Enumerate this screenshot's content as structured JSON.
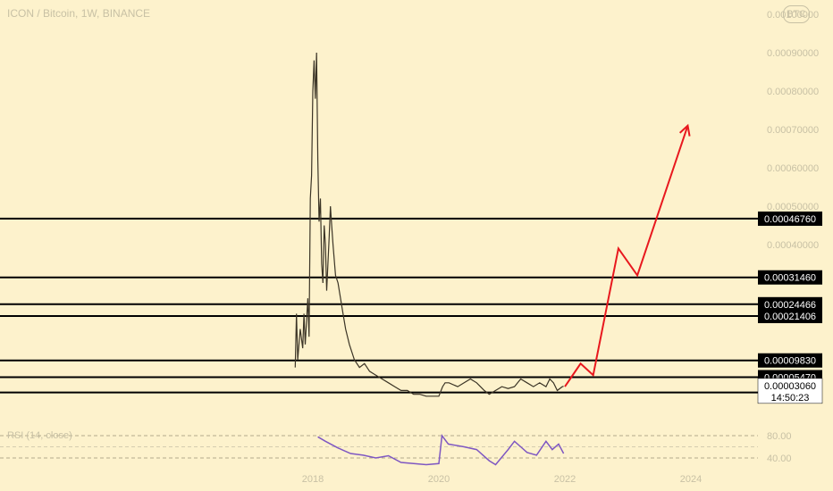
{
  "header": {
    "title": "ICON / Bitcoin, 1W, BINANCE",
    "currency_badge": "BTC"
  },
  "chart_data": {
    "type": "line",
    "title": "ICON / Bitcoin, 1W, BINANCE",
    "price_axis_labels": [
      "0.00100000",
      "0.00090000",
      "0.00080000",
      "0.00070000",
      "0.00060000",
      "0.00050000",
      "0.00040000"
    ],
    "time_axis_labels": [
      "2018",
      "2020",
      "2022",
      "2024"
    ],
    "ylim": [
      1e-05,
      0.00102
    ],
    "horizontal_levels": [
      0.0004676,
      0.0003146,
      0.00024466,
      0.00021406,
      9.83e-05,
      5.47e-05,
      1.484e-05
    ],
    "horizontal_level_labels": [
      "0.00046760",
      "0.00031460",
      "0.00024466",
      "0.00021406",
      "0.00009830",
      "0.00005470",
      "0.00001484"
    ],
    "last_price": "0.00003060",
    "countdown": "14:50:23",
    "price_series": {
      "name": "",
      "x": [
        2017.72,
        2017.74,
        2017.76,
        2017.8,
        2017.84,
        2017.86,
        2017.88,
        2017.92,
        2017.94,
        2017.96,
        2017.98,
        2018.0,
        2018.02,
        2018.04,
        2018.06,
        2018.08,
        2018.1,
        2018.12,
        2018.14,
        2018.16,
        2018.18,
        2018.2,
        2018.22,
        2018.26,
        2018.28,
        2018.3,
        2018.32,
        2018.36,
        2018.4,
        2018.44,
        2018.48,
        2018.52,
        2018.58,
        2018.66,
        2018.74,
        2018.82,
        2018.9,
        2019.0,
        2019.1,
        2019.2,
        2019.3,
        2019.4,
        2019.5,
        2019.6,
        2019.7,
        2019.8,
        2019.9,
        2020.0,
        2020.06,
        2020.1,
        2020.16,
        2020.3,
        2020.5,
        2020.6,
        2020.66,
        2020.72,
        2020.8,
        2020.9,
        2021.0,
        2021.1,
        2021.2,
        2021.3,
        2021.4,
        2021.5,
        2021.6,
        2021.7,
        2021.76,
        2021.82,
        2021.88,
        2021.96,
        2021.98
      ],
      "y": [
        8e-05,
        0.00022,
        0.0001,
        0.00018,
        0.00013,
        0.00022,
        0.00014,
        0.00026,
        0.00016,
        0.00052,
        0.00058,
        0.0008,
        0.00088,
        0.00078,
        0.0009,
        0.00062,
        0.00046,
        0.00052,
        0.00035,
        0.0003,
        0.00045,
        0.0004,
        0.00028,
        0.00042,
        0.0005,
        0.00045,
        0.0004,
        0.00032,
        0.0003,
        0.00026,
        0.00022,
        0.00018,
        0.00014,
        0.0001,
        8e-05,
        9e-05,
        7e-05,
        6e-05,
        5e-05,
        4e-05,
        3e-05,
        2e-05,
        2e-05,
        1e-05,
        1e-05,
        5e-06,
        5e-06,
        5e-06,
        3e-05,
        4e-05,
        4e-05,
        3e-05,
        5e-05,
        4e-05,
        3e-05,
        2e-05,
        1e-05,
        2e-05,
        3e-05,
        2.5e-05,
        3e-05,
        5e-05,
        4e-05,
        3e-05,
        4e-05,
        3e-05,
        5e-05,
        4e-05,
        2e-05,
        3e-05,
        3.1e-05
      ]
    },
    "projection": {
      "x": [
        2022.0,
        2022.25,
        2022.45,
        2022.85,
        2023.15,
        2023.95
      ],
      "y": [
        3e-05,
        9e-05,
        6e-05,
        0.00039,
        0.00032,
        0.00071
      ]
    },
    "rsi_panel": {
      "label": "RSI (14, close)",
      "axis_labels": [
        "80.00",
        "40.00"
      ],
      "levels": [
        80,
        40
      ],
      "x": [
        2018.08,
        2018.2,
        2018.4,
        2018.6,
        2018.8,
        2019.0,
        2019.2,
        2019.4,
        2019.6,
        2019.8,
        2020.0,
        2020.05,
        2020.15,
        2020.4,
        2020.6,
        2020.8,
        2020.9,
        2021.1,
        2021.2,
        2021.3,
        2021.4,
        2021.55,
        2021.7,
        2021.8,
        2021.9,
        2021.98
      ],
      "y": [
        78,
        70,
        58,
        48,
        45,
        40,
        44,
        32,
        30,
        28,
        30,
        80,
        65,
        60,
        55,
        35,
        28,
        55,
        70,
        60,
        50,
        45,
        70,
        55,
        65,
        48
      ]
    }
  },
  "colors": {
    "background": "#fdf2cc",
    "level_line": "#000000",
    "projection": "#e8181e",
    "rsi_line": "#7e57c2",
    "price_line": "#3b3426"
  }
}
